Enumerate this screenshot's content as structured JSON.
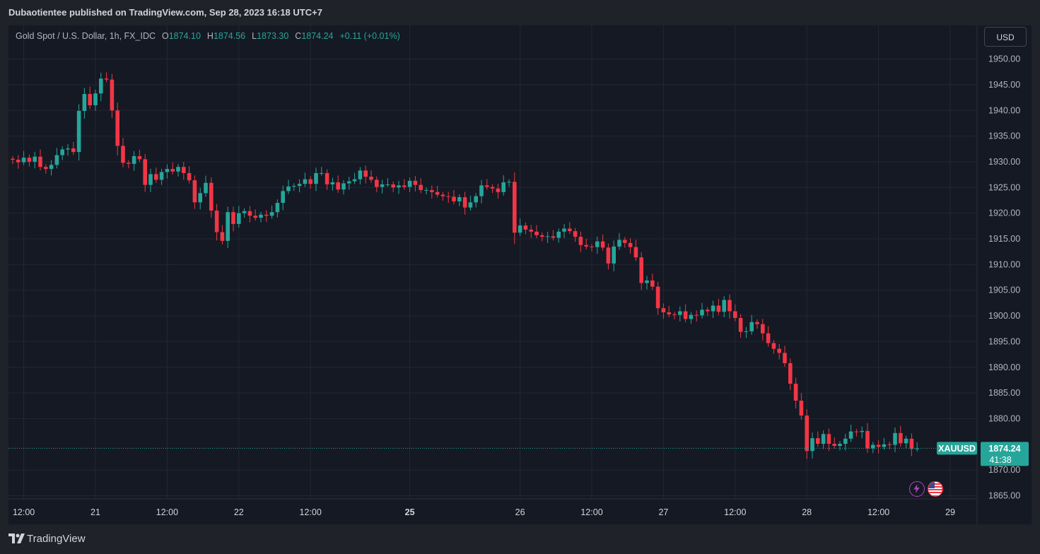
{
  "header": {
    "published_by": "Dubaotientee published on TradingView.com, Sep 28, 2023 16:18 UTC+7"
  },
  "legend": {
    "symbol_desc": "Gold Spot / U.S. Dollar, 1h, FX_IDC",
    "open_label": "O",
    "open": "1874.10",
    "high_label": "H",
    "high": "1874.56",
    "low_label": "L",
    "low": "1873.30",
    "close_label": "C",
    "close": "1874.24",
    "change": "+0.11 (+0.01%)"
  },
  "currency_button": "USD",
  "price_tag": {
    "symbol": "XAUUSD",
    "price": "1874.24",
    "countdown": "41:38"
  },
  "footer": {
    "brand": "TradingView"
  },
  "colors": {
    "up": "#26a69a",
    "down": "#f23645",
    "background": "#151924",
    "grid": "#232734",
    "text": "#b2b5be"
  },
  "icons": {
    "flash": "lightning-icon",
    "flag": "us-flag-icon"
  },
  "chart_data": {
    "type": "candlestick",
    "symbol": "XAUUSD",
    "interval": "1h",
    "ylim": [
      1863,
      1953
    ],
    "y_ticks": [
      "1950.00",
      "1945.00",
      "1940.00",
      "1935.00",
      "1930.00",
      "1925.00",
      "1920.00",
      "1915.00",
      "1910.00",
      "1905.00",
      "1900.00",
      "1895.00",
      "1890.00",
      "1885.00",
      "1880.00",
      "1870.00",
      "1865.00"
    ],
    "x_ticks": [
      {
        "label": "12:00",
        "bold": false,
        "idx": 2
      },
      {
        "label": "21",
        "bold": false,
        "idx": 15
      },
      {
        "label": "12:00",
        "bold": false,
        "idx": 28
      },
      {
        "label": "22",
        "bold": false,
        "idx": 41
      },
      {
        "label": "12:00",
        "bold": false,
        "idx": 54
      },
      {
        "label": "25",
        "bold": true,
        "idx": 72
      },
      {
        "label": "26",
        "bold": false,
        "idx": 92
      },
      {
        "label": "12:00",
        "bold": false,
        "idx": 105
      },
      {
        "label": "27",
        "bold": false,
        "idx": 118
      },
      {
        "label": "12:00",
        "bold": false,
        "idx": 131
      },
      {
        "label": "28",
        "bold": false,
        "idx": 144
      },
      {
        "label": "12:00",
        "bold": false,
        "idx": 157
      },
      {
        "label": "29",
        "bold": false,
        "idx": 170
      }
    ],
    "last_price": 1874.24,
    "closes": [
      1930.4,
      1929.9,
      1930.8,
      1930.0,
      1931.0,
      1929.0,
      1928.6,
      1929.4,
      1931.3,
      1932.4,
      1932.6,
      1931.9,
      1939.9,
      1943.2,
      1941.0,
      1943.3,
      1946.2,
      1946.0,
      1940.0,
      1933.1,
      1929.8,
      1929.6,
      1931.1,
      1930.5,
      1925.5,
      1927.6,
      1926.5,
      1928.0,
      1928.6,
      1928.1,
      1929.0,
      1927.8,
      1926.4,
      1922.1,
      1923.9,
      1925.9,
      1920.5,
      1916.3,
      1914.6,
      1920.2,
      1917.9,
      1920.0,
      1920.4,
      1919.5,
      1919.1,
      1919.7,
      1919.5,
      1920.2,
      1922.0,
      1924.3,
      1925.2,
      1925.3,
      1925.7,
      1926.6,
      1925.7,
      1927.8,
      1927.8,
      1925.6,
      1926.0,
      1924.6,
      1925.8,
      1926.2,
      1926.6,
      1928.3,
      1927.1,
      1926.5,
      1925.1,
      1925.6,
      1925.6,
      1925.0,
      1925.4,
      1925.1,
      1926.3,
      1925.5,
      1924.5,
      1924.5,
      1924.1,
      1923.6,
      1923.3,
      1923.2,
      1922.3,
      1923.1,
      1921.1,
      1922.1,
      1923.3,
      1925.4,
      1925.1,
      1924.8,
      1924.1,
      1926.0,
      1926.1,
      1916.2,
      1917.6,
      1916.8,
      1916.4,
      1915.7,
      1915.4,
      1915.5,
      1915.2,
      1916.4,
      1917.0,
      1916.5,
      1915.4,
      1913.8,
      1913.5,
      1913.4,
      1914.5,
      1913.3,
      1910.2,
      1913.5,
      1914.8,
      1914.2,
      1913.4,
      1911.4,
      1906.4,
      1906.9,
      1905.7,
      1901.5,
      1900.7,
      1900.3,
      1900.2,
      1900.9,
      1899.4,
      1900.2,
      1900.1,
      1901.2,
      1900.9,
      1902.0,
      1900.8,
      1903.1,
      1900.9,
      1899.6,
      1896.9,
      1897.0,
      1898.8,
      1898.4,
      1896.6,
      1894.7,
      1893.6,
      1892.8,
      1890.8,
      1886.8,
      1883.5,
      1880.6,
      1873.7,
      1876.2,
      1875.1,
      1877.0,
      1875.1,
      1874.7,
      1875.1,
      1876.1,
      1877.5,
      1877.4,
      1877.6,
      1874.2,
      1874.9,
      1874.5,
      1875.0,
      1874.9,
      1877.2,
      1875.2,
      1876.1,
      1874.1,
      1874.2
    ]
  }
}
